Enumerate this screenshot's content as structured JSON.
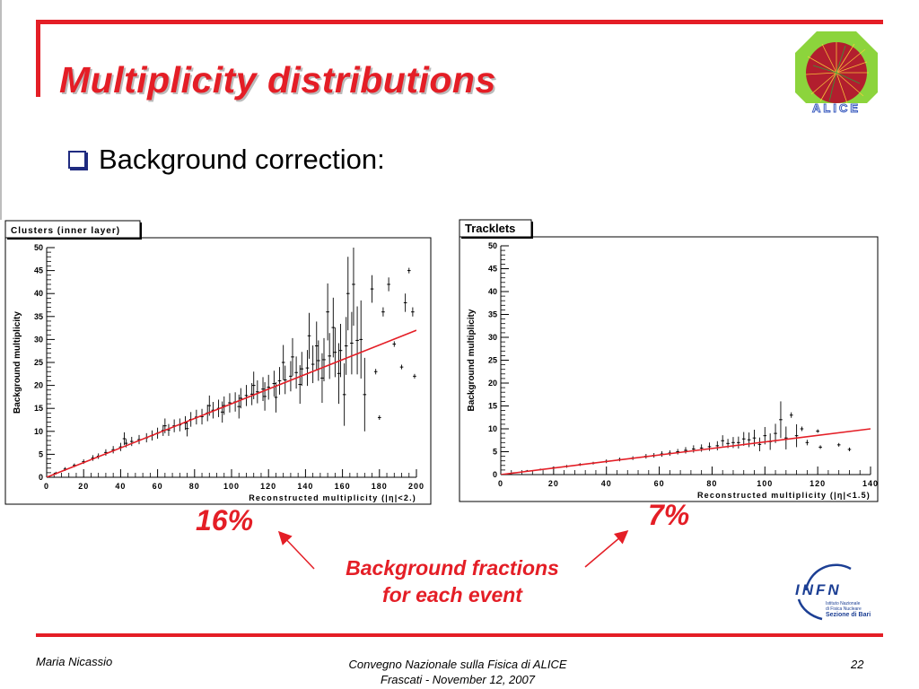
{
  "slide": {
    "title": "Multiplicity distributions",
    "bullet": "Background correction:",
    "page_number": "22"
  },
  "annotations": {
    "left_percent": "16%",
    "right_percent": "7%",
    "background_fractions_line1": "Background fractions",
    "background_fractions_line2": "for each event"
  },
  "footer": {
    "author": "Maria Nicassio",
    "conference": "Convegno Nazionale sulla Fisica di ALICE",
    "venue_date": "Frascati -  November 12, 2007"
  },
  "logos": {
    "alice_text": "ALICE",
    "infn_text": "INFN",
    "infn_sub1": "Istituto Nazionale",
    "infn_sub2": "di Fisica Nucleare",
    "infn_sub3": "Sezione di Bari"
  },
  "colors": {
    "accent": "#e41e26",
    "bullet": "#1f2b80",
    "fit_line": "#e41e26",
    "infn_blue": "#1c3f94"
  },
  "chart_data": [
    {
      "type": "scatter",
      "title": "Clusters (inner layer)",
      "xlabel": "Reconstructed multiplicity (|η|<2.)",
      "ylabel": "Background multiplicity",
      "xlim": [
        0,
        200
      ],
      "ylim": [
        0,
        50
      ],
      "xticks": [
        0,
        20,
        40,
        60,
        80,
        100,
        120,
        140,
        160,
        180,
        200
      ],
      "yticks": [
        0,
        5,
        10,
        15,
        20,
        25,
        30,
        35,
        40,
        45,
        50
      ],
      "fit": {
        "x": [
          0,
          200
        ],
        "y": [
          0,
          32.0
        ]
      },
      "points": [
        [
          5,
          0.9,
          0.3
        ],
        [
          10,
          1.8,
          0.4
        ],
        [
          15,
          2.6,
          0.4
        ],
        [
          20,
          3.4,
          0.5
        ],
        [
          25,
          4.2,
          0.6
        ],
        [
          28,
          4.6,
          0.6
        ],
        [
          32,
          5.4,
          0.7
        ],
        [
          36,
          6.0,
          0.8
        ],
        [
          40,
          6.6,
          0.9
        ],
        [
          43,
          7.4,
          0.9
        ],
        [
          46,
          7.8,
          1.0
        ],
        [
          50,
          8.2,
          1.0
        ],
        [
          54,
          8.6,
          1.0
        ],
        [
          57,
          9.1,
          1.1
        ],
        [
          60,
          9.6,
          1.2
        ],
        [
          63,
          10.2,
          1.2
        ],
        [
          66,
          10.3,
          1.3
        ],
        [
          69,
          11.2,
          1.4
        ],
        [
          72,
          11.4,
          1.4
        ],
        [
          75,
          11.8,
          1.5
        ],
        [
          78,
          12.6,
          1.6
        ],
        [
          81,
          13.1,
          1.6
        ],
        [
          84,
          13.2,
          1.7
        ],
        [
          87,
          14.0,
          1.8
        ],
        [
          90,
          14.6,
          1.8
        ],
        [
          93,
          15.0,
          1.9
        ],
        [
          96,
          15.6,
          2.0
        ],
        [
          99,
          16.2,
          2.1
        ],
        [
          102,
          16.4,
          2.1
        ],
        [
          105,
          17.2,
          2.2
        ],
        [
          108,
          17.8,
          2.3
        ],
        [
          111,
          18.1,
          2.4
        ],
        [
          114,
          18.6,
          2.5
        ],
        [
          117,
          19.2,
          2.6
        ],
        [
          120,
          19.6,
          2.7
        ],
        [
          123,
          20.4,
          2.8
        ],
        [
          126,
          21.0,
          3.0
        ],
        [
          129,
          21.2,
          3.1
        ],
        [
          132,
          22.0,
          3.3
        ],
        [
          135,
          22.8,
          3.5
        ],
        [
          138,
          23.6,
          3.7
        ],
        [
          141,
          23.8,
          3.9
        ],
        [
          144,
          24.6,
          4.1
        ],
        [
          147,
          25.4,
          4.4
        ],
        [
          150,
          25.6,
          4.7
        ],
        [
          153,
          26.4,
          5.0
        ],
        [
          156,
          27.2,
          5.4
        ],
        [
          159,
          27.6,
          5.8
        ],
        [
          162,
          28.6,
          6.3
        ],
        [
          165,
          29.2,
          6.8
        ],
        [
          168,
          29.8,
          7.4
        ],
        [
          42,
          8.4,
          1.4
        ],
        [
          64,
          11.2,
          1.6
        ],
        [
          76,
          10.6,
          1.7
        ],
        [
          88,
          15.6,
          2.2
        ],
        [
          95,
          14.2,
          2.3
        ],
        [
          104,
          15.4,
          2.6
        ],
        [
          112,
          20.0,
          3.0
        ],
        [
          118,
          17.6,
          3.1
        ],
        [
          124,
          17.4,
          3.3
        ],
        [
          128,
          25.0,
          3.8
        ],
        [
          133,
          26.2,
          4.1
        ],
        [
          137,
          20.2,
          4.2
        ],
        [
          142,
          30.8,
          5.0
        ],
        [
          146,
          28.6,
          5.3
        ],
        [
          149,
          21.6,
          5.4
        ],
        [
          152,
          36.0,
          6.2
        ],
        [
          155,
          32.6,
          6.5
        ],
        [
          158,
          22.6,
          6.6
        ],
        [
          161,
          18.0,
          6.8
        ],
        [
          163,
          40.0,
          8.0
        ],
        [
          166,
          42.0,
          9.0
        ],
        [
          170,
          30.0,
          8.5
        ],
        [
          172,
          18.0,
          8.0
        ],
        [
          176,
          41.0,
          3.0
        ],
        [
          178,
          23.0,
          0.6
        ],
        [
          180,
          13.0,
          0.5
        ],
        [
          182,
          36.0,
          1.0
        ],
        [
          185,
          42.0,
          1.5
        ],
        [
          188,
          29.0,
          0.6
        ],
        [
          192,
          24.0,
          0.5
        ],
        [
          194,
          38.0,
          2.0
        ],
        [
          196,
          45.0,
          0.6
        ],
        [
          198,
          36.0,
          1.0
        ],
        [
          199,
          22.0,
          0.5
        ]
      ]
    },
    {
      "type": "scatter",
      "title": "Tracklets",
      "xlabel": "Reconstructed multiplicity (|η|<1.5)",
      "ylabel": "Background multiplicity",
      "xlim": [
        0,
        140
      ],
      "ylim": [
        0,
        50
      ],
      "xticks": [
        0,
        20,
        40,
        60,
        80,
        100,
        120,
        140
      ],
      "yticks": [
        0,
        5,
        10,
        15,
        20,
        25,
        30,
        35,
        40,
        45,
        50
      ],
      "fit": {
        "x": [
          0,
          140
        ],
        "y": [
          0,
          10.0
        ]
      },
      "points": [
        [
          5,
          0.4,
          0.1
        ],
        [
          10,
          0.8,
          0.2
        ],
        [
          15,
          1.1,
          0.2
        ],
        [
          20,
          1.5,
          0.2
        ],
        [
          25,
          1.8,
          0.3
        ],
        [
          30,
          2.2,
          0.3
        ],
        [
          35,
          2.5,
          0.3
        ],
        [
          40,
          2.9,
          0.4
        ],
        [
          45,
          3.3,
          0.4
        ],
        [
          50,
          3.6,
          0.4
        ],
        [
          55,
          4.0,
          0.5
        ],
        [
          58,
          4.2,
          0.5
        ],
        [
          61,
          4.5,
          0.6
        ],
        [
          64,
          4.7,
          0.6
        ],
        [
          67,
          5.0,
          0.6
        ],
        [
          70,
          5.3,
          0.7
        ],
        [
          73,
          5.6,
          0.8
        ],
        [
          76,
          5.8,
          0.8
        ],
        [
          79,
          6.1,
          0.9
        ],
        [
          82,
          6.3,
          1.0
        ],
        [
          84,
          7.4,
          1.2
        ],
        [
          86,
          6.8,
          1.0
        ],
        [
          88,
          7.0,
          1.2
        ],
        [
          90,
          7.0,
          1.3
        ],
        [
          92,
          7.8,
          1.5
        ],
        [
          94,
          7.6,
          1.6
        ],
        [
          96,
          8.0,
          1.8
        ],
        [
          98,
          6.6,
          1.5
        ],
        [
          100,
          8.5,
          1.9
        ],
        [
          102,
          7.2,
          1.8
        ],
        [
          104,
          9.0,
          2.1
        ],
        [
          106,
          12.0,
          4.0
        ],
        [
          108,
          8.0,
          2.5
        ],
        [
          110,
          13.0,
          0.6
        ],
        [
          112,
          8.5,
          2.5
        ],
        [
          114,
          10.0,
          0.5
        ],
        [
          116,
          7.0,
          0.6
        ],
        [
          121,
          6.0,
          0.4
        ],
        [
          128,
          6.5,
          0.4
        ],
        [
          132,
          5.5,
          0.4
        ],
        [
          120,
          9.5,
          0.4
        ]
      ]
    }
  ]
}
